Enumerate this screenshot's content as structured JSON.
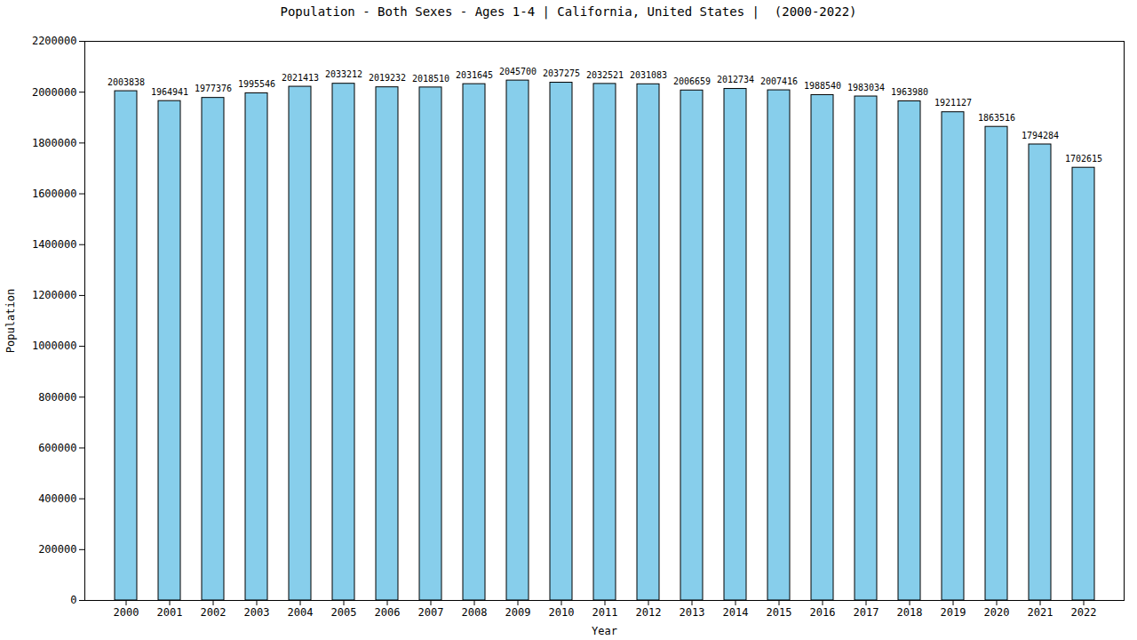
{
  "chart_data": {
    "type": "bar",
    "title": "Population - Both Sexes - Ages 1-4 | California, United States |  (2000-2022)",
    "x_label": "Year",
    "y_label": "Population",
    "categories": [
      "2000",
      "2001",
      "2002",
      "2003",
      "2004",
      "2005",
      "2006",
      "2007",
      "2008",
      "2009",
      "2010",
      "2011",
      "2012",
      "2013",
      "2014",
      "2015",
      "2016",
      "2017",
      "2018",
      "2019",
      "2020",
      "2021",
      "2022"
    ],
    "values": [
      2003838,
      1964941,
      1977376,
      1995546,
      2021413,
      2033212,
      2019232,
      2018510,
      2031645,
      2045700,
      2037275,
      2032521,
      2031083,
      2006659,
      2012734,
      2007416,
      1988540,
      1983034,
      1963980,
      1921127,
      1863516,
      1794284,
      1702615
    ],
    "color": "#87ceeb",
    "ylim": [
      0,
      2200000
    ],
    "yticks": [
      0,
      200000,
      400000,
      600000,
      800000,
      1000000,
      1200000,
      1400000,
      1600000,
      1800000,
      2000000,
      2200000
    ],
    "grid": false,
    "data_labels": true
  }
}
